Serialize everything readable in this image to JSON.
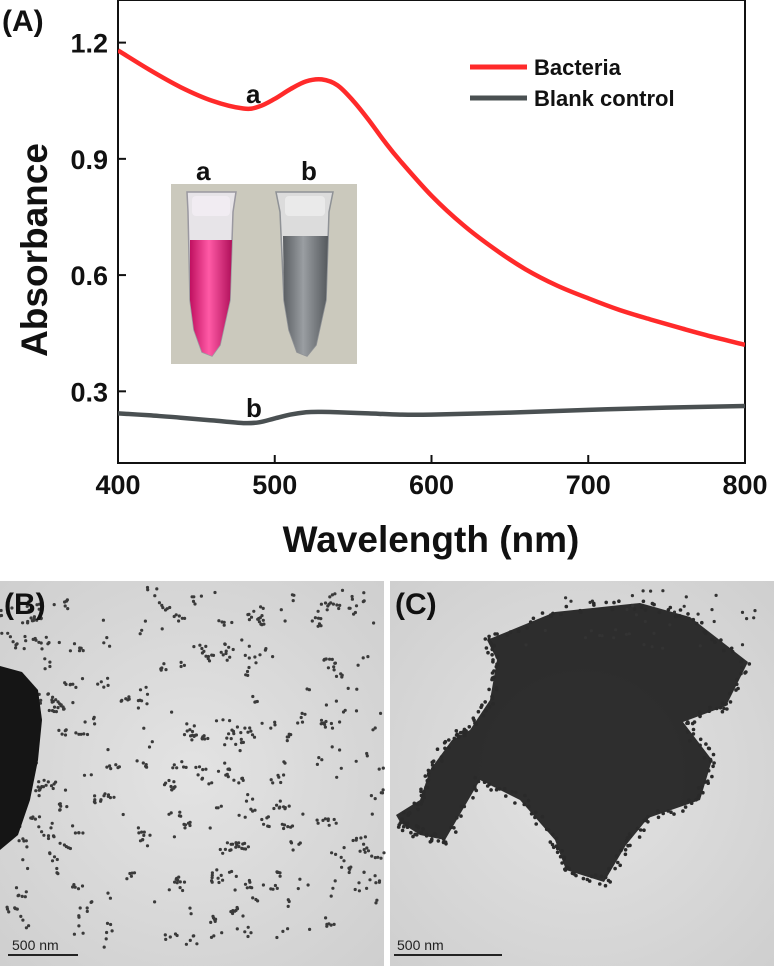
{
  "chart_data": [
    {
      "type": "line",
      "panel_label": "(A)",
      "xlabel": "Wavelength (nm)",
      "ylabel": "Absorbance",
      "xlim": [
        400,
        800
      ],
      "ylim": [
        0.115,
        1.31
      ],
      "xticks": [
        "400",
        "500",
        "600",
        "700",
        "800"
      ],
      "yticks": [
        "0.3",
        "0.6",
        "0.9",
        "1.2"
      ],
      "grid": false,
      "legend_position": "top-right",
      "series": [
        {
          "name": "Bacteria",
          "color": "#ff2a2a",
          "curve_label": "a",
          "x": [
            400,
            420,
            440,
            460,
            480,
            490,
            500,
            510,
            520,
            530,
            540,
            550,
            560,
            570,
            580,
            600,
            620,
            640,
            660,
            680,
            700,
            720,
            740,
            760,
            780,
            800
          ],
          "y": [
            1.18,
            1.13,
            1.085,
            1.05,
            1.03,
            1.035,
            1.055,
            1.08,
            1.1,
            1.105,
            1.09,
            1.05,
            1.0,
            0.945,
            0.895,
            0.805,
            0.73,
            0.668,
            0.615,
            0.573,
            0.54,
            0.51,
            0.485,
            0.462,
            0.44,
            0.42
          ]
        },
        {
          "name": "Blank control",
          "color": "#4a5052",
          "curve_label": "b",
          "x": [
            400,
            420,
            440,
            460,
            480,
            490,
            500,
            510,
            520,
            530,
            540,
            560,
            580,
            600,
            650,
            700,
            750,
            800
          ],
          "y": [
            0.243,
            0.238,
            0.232,
            0.225,
            0.218,
            0.22,
            0.23,
            0.24,
            0.246,
            0.247,
            0.246,
            0.243,
            0.24,
            0.24,
            0.245,
            0.252,
            0.258,
            0.262
          ]
        }
      ],
      "inset_labels": [
        "a",
        "b"
      ]
    }
  ],
  "panels": {
    "b_label": "(B)",
    "c_label": "(C)",
    "b_scale": "500 nm",
    "c_scale": "500 nm"
  }
}
